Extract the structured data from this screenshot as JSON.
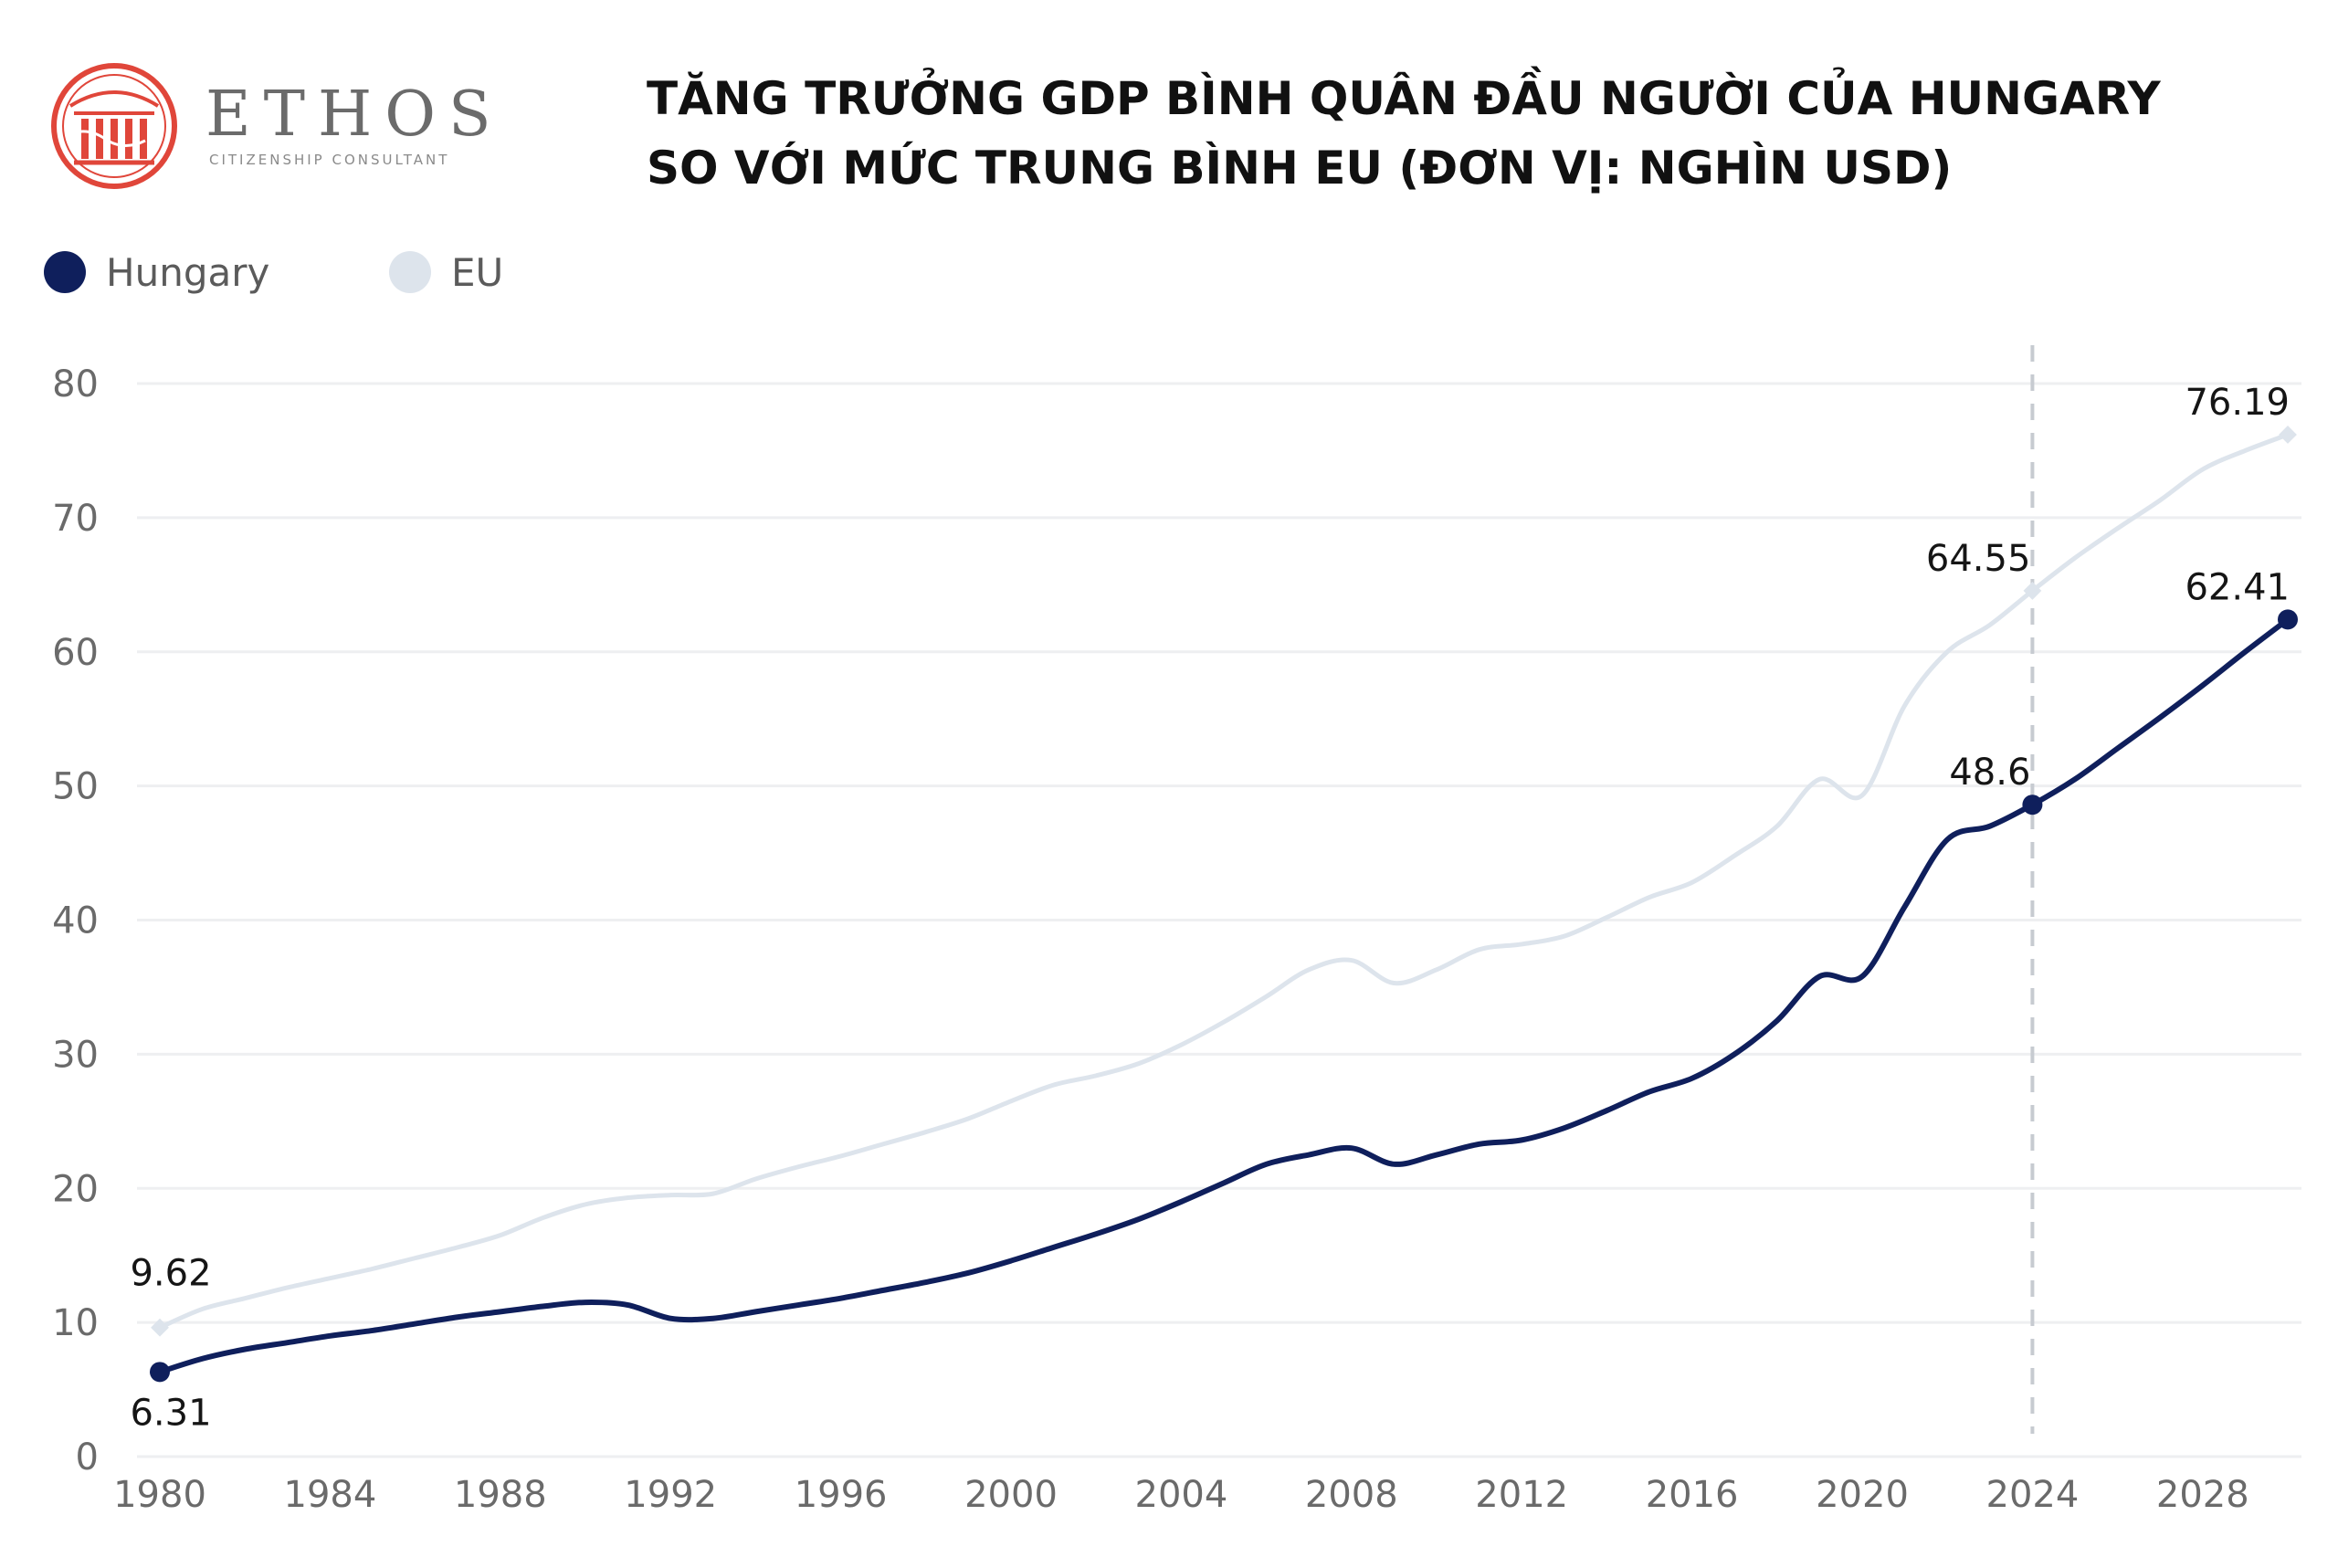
{
  "brand": {
    "name": "ETHOS",
    "tagline": "CITIZENSHIP CONSULTANT",
    "color": "#e0463a"
  },
  "title": {
    "line1": "TĂNG TRƯỞNG GDP BÌNH QUÂN ĐẦU NGƯỜI CỦA HUNGARY",
    "line2": "SO VỚI MỨC TRUNG BÌNH EU (ĐƠN VỊ: NGHÌN USD)"
  },
  "legend": [
    {
      "label": "Hungary",
      "color": "#0f1f5c"
    },
    {
      "label": "EU",
      "color": "#dde4ec"
    }
  ],
  "chart_data": {
    "type": "line",
    "title": "TĂNG TRƯỞNG GDP BÌNH QUÂN ĐẦU NGƯỜI CỦA HUNGARY SO VỚI MỨC TRUNG BÌNH EU (ĐƠN VỊ: NGHÌN USD)",
    "xlabel": "",
    "ylabel": "",
    "xlim": [
      1980,
      2030
    ],
    "ylim": [
      0,
      80
    ],
    "xticks": [
      "1980",
      "1984",
      "1988",
      "1992",
      "1996",
      "2000",
      "2004",
      "2008",
      "2012",
      "2016",
      "2020",
      "2024",
      "2028"
    ],
    "yticks": [
      "0",
      "10",
      "20",
      "30",
      "40",
      "50",
      "60",
      "70",
      "80"
    ],
    "grid": true,
    "legend_position": "top-left",
    "projection_marker_year": 2024,
    "series": [
      {
        "name": "Hungary",
        "color": "#0f1f5c",
        "x": [
          1980,
          1981,
          1982,
          1983,
          1984,
          1985,
          1986,
          1987,
          1988,
          1989,
          1990,
          1991,
          1992,
          1993,
          1994,
          1995,
          1996,
          1997,
          1998,
          1999,
          2000,
          2001,
          2002,
          2003,
          2004,
          2005,
          2006,
          2007,
          2008,
          2009,
          2010,
          2011,
          2012,
          2013,
          2014,
          2015,
          2016,
          2017,
          2018,
          2019,
          2020,
          2021,
          2022,
          2023,
          2024,
          2025,
          2026,
          2027,
          2028,
          2029,
          2030
        ],
        "values": [
          6.31,
          7.3,
          8.0,
          8.5,
          9.0,
          9.4,
          9.9,
          10.4,
          10.8,
          11.2,
          11.5,
          11.3,
          10.3,
          10.3,
          10.8,
          11.3,
          11.8,
          12.4,
          13.0,
          13.7,
          14.6,
          15.6,
          16.6,
          17.7,
          19.0,
          20.4,
          21.8,
          22.5,
          23.0,
          21.8,
          22.5,
          23.3,
          23.6,
          24.5,
          25.8,
          27.2,
          28.2,
          30.0,
          32.5,
          35.8,
          35.8,
          41.0,
          46.0,
          47.0,
          48.6,
          50.5,
          52.8,
          55.1,
          57.5,
          60.0,
          62.41
        ],
        "labels": [
          {
            "year": 1980,
            "text": "6.31"
          },
          {
            "year": 2024,
            "text": "48.6"
          },
          {
            "year": 2030,
            "text": "62.41"
          }
        ]
      },
      {
        "name": "EU",
        "color": "#dde4ec",
        "x": [
          1980,
          1981,
          1982,
          1983,
          1984,
          1985,
          1986,
          1987,
          1988,
          1989,
          1990,
          1991,
          1992,
          1993,
          1994,
          1995,
          1996,
          1997,
          1998,
          1999,
          2000,
          2001,
          2002,
          2003,
          2004,
          2005,
          2006,
          2007,
          2008,
          2009,
          2010,
          2011,
          2012,
          2013,
          2014,
          2015,
          2016,
          2017,
          2018,
          2019,
          2020,
          2021,
          2022,
          2023,
          2024,
          2025,
          2026,
          2027,
          2028,
          2029,
          2030
        ],
        "values": [
          9.62,
          11.0,
          11.8,
          12.6,
          13.3,
          14.0,
          14.8,
          15.6,
          16.5,
          17.8,
          18.8,
          19.3,
          19.5,
          19.6,
          20.7,
          21.6,
          22.4,
          23.3,
          24.2,
          25.2,
          26.5,
          27.7,
          28.4,
          29.3,
          30.7,
          32.4,
          34.3,
          36.3,
          37.0,
          35.3,
          36.3,
          37.8,
          38.2,
          38.8,
          40.2,
          41.7,
          42.8,
          44.8,
          47.0,
          50.5,
          49.3,
          56.0,
          60.0,
          62.0,
          64.55,
          67.0,
          69.2,
          71.3,
          73.6,
          75.0,
          76.19
        ],
        "labels": [
          {
            "year": 1980,
            "text": "9.62"
          },
          {
            "year": 2024,
            "text": "64.55"
          },
          {
            "year": 2030,
            "text": "76.19"
          }
        ]
      }
    ]
  }
}
